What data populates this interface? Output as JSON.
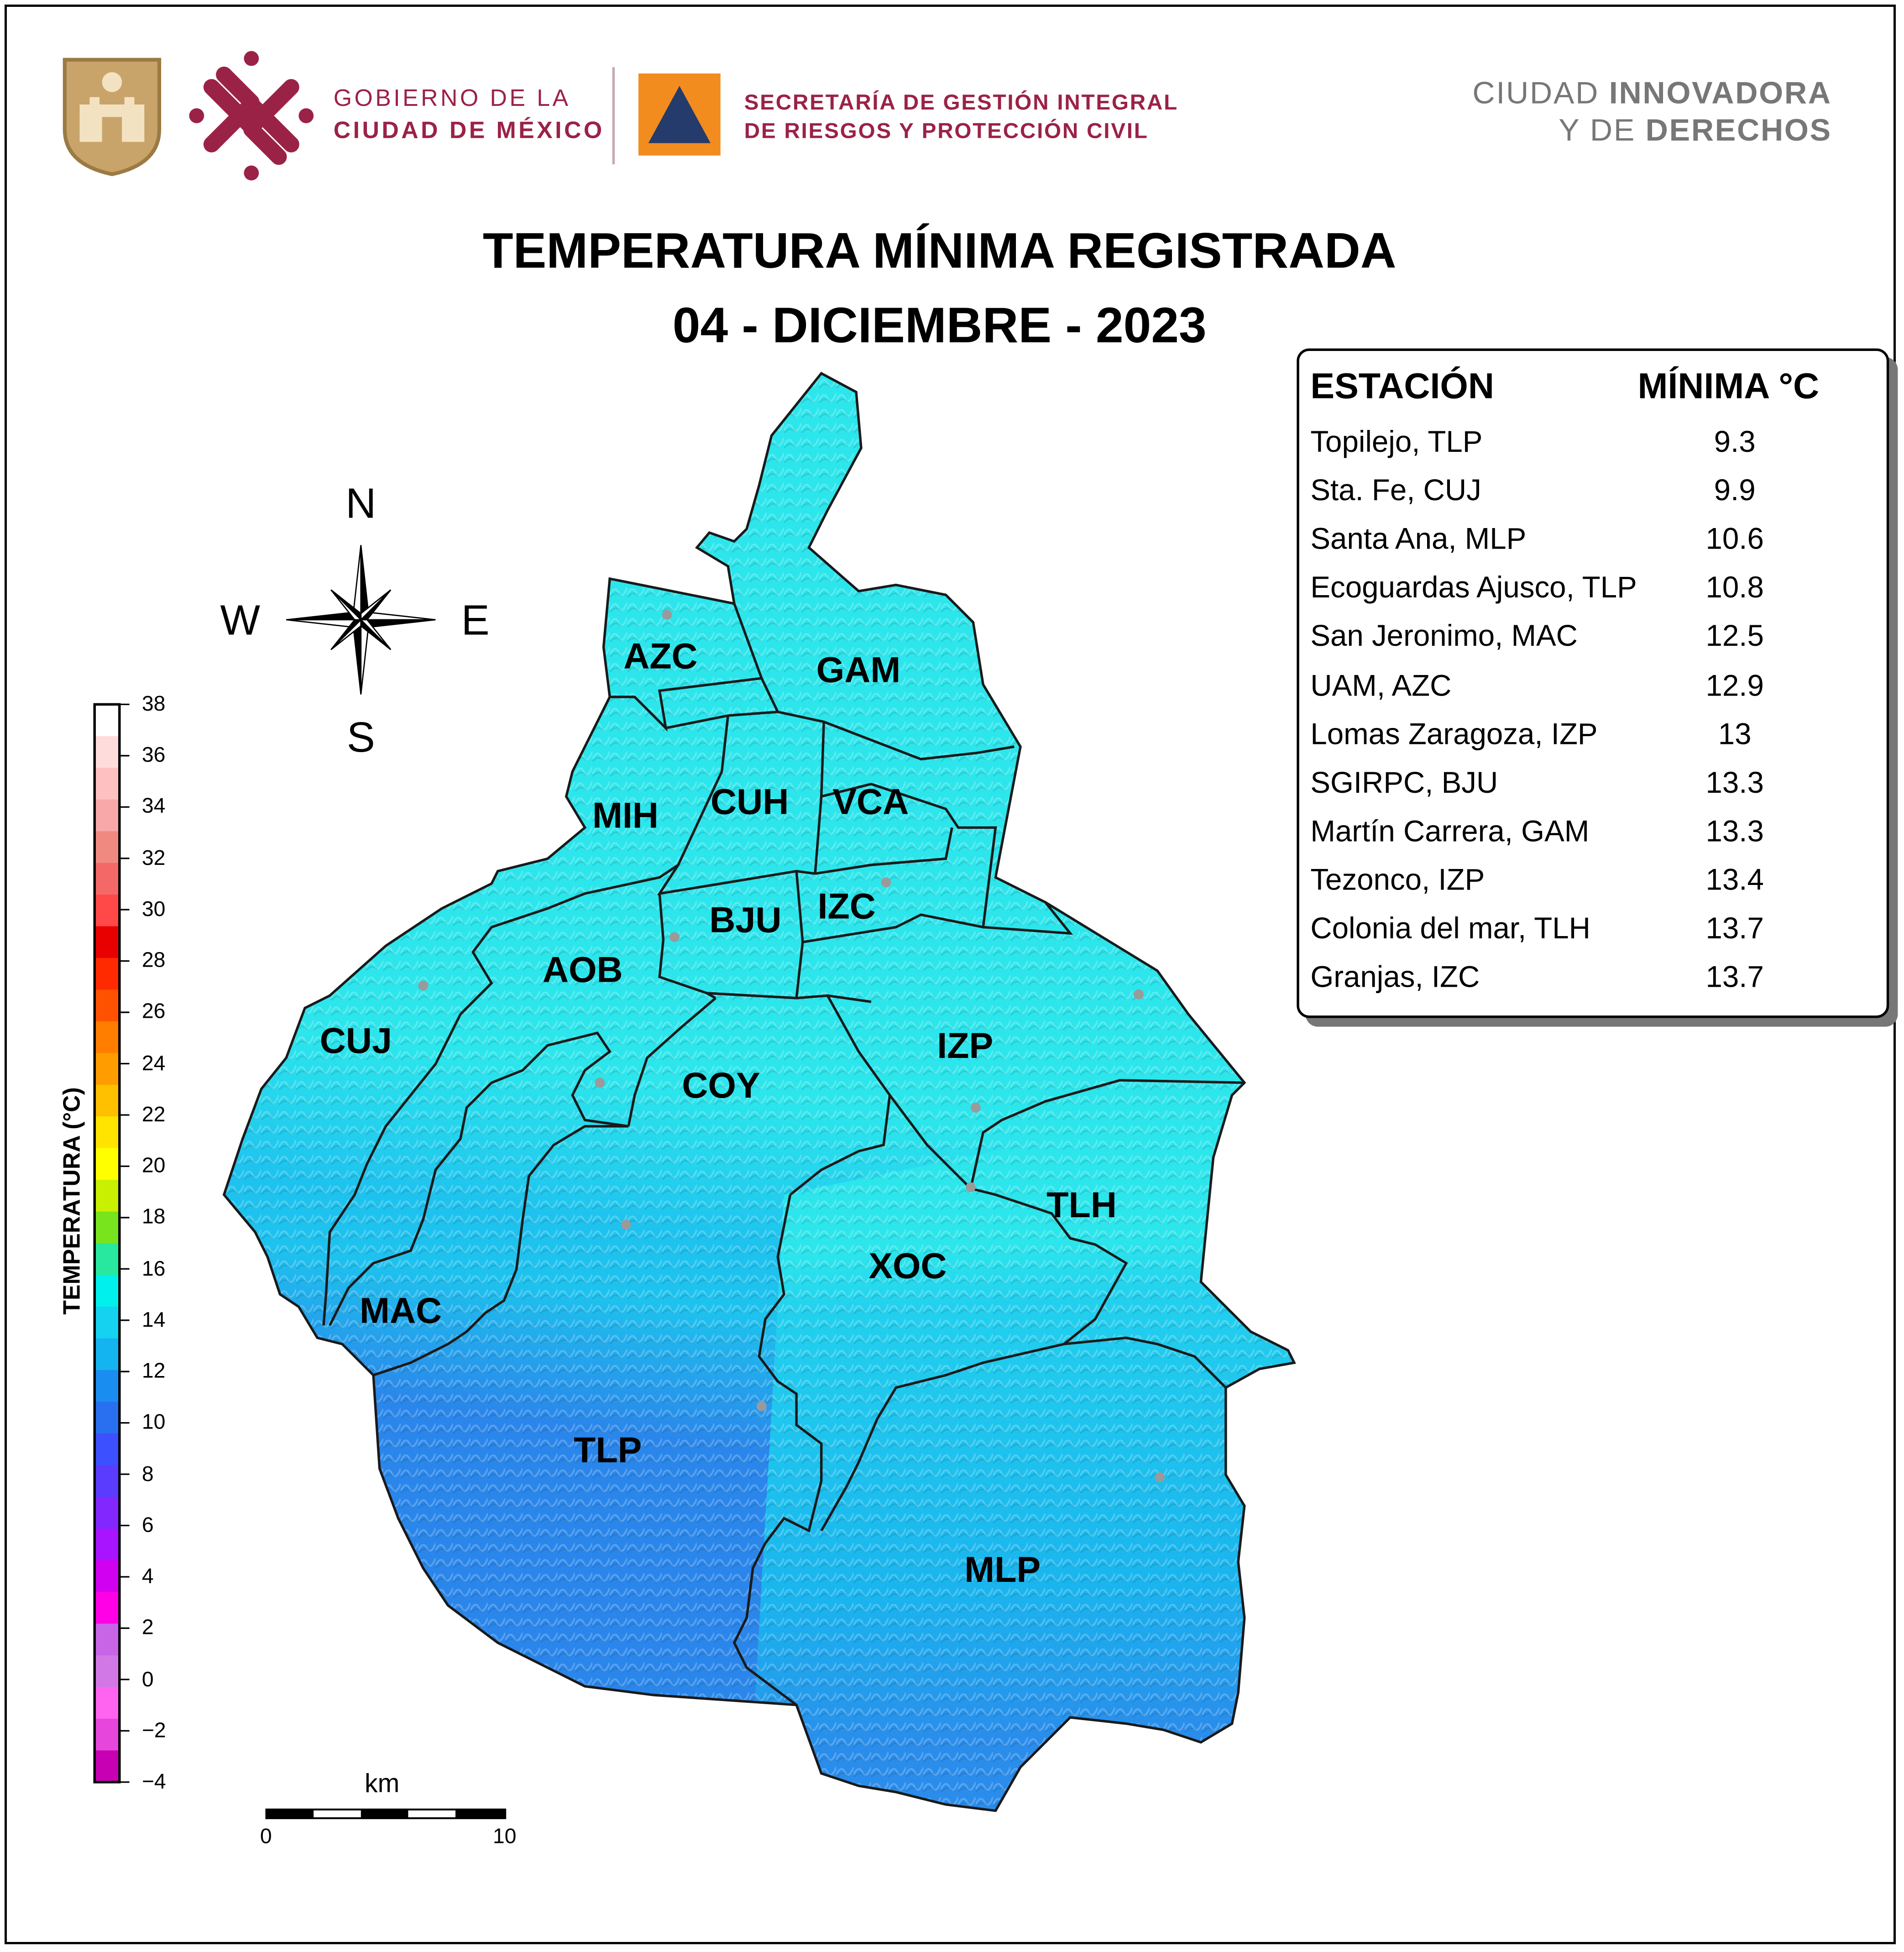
{
  "header": {
    "gov_line1": "GOBIERNO DE LA",
    "gov_line2": "CIUDAD DE MÉXICO",
    "agency_line1": "SECRETARÍA DE GESTIÓN INTEGRAL",
    "agency_line2": "DE RIESGOS Y PROTECCIÓN CIVIL",
    "slogan_line1_light": "CIUDAD ",
    "slogan_line1_bold": "INNOVADORA",
    "slogan_line2_light": "Y DE ",
    "slogan_line2_bold": "DERECHOS"
  },
  "title": {
    "line1": "TEMPERATURA MÍNIMA REGISTRADA",
    "line2": "04 - DICIEMBRE - 2023"
  },
  "compass": {
    "n": "N",
    "s": "S",
    "e": "E",
    "w": "W"
  },
  "table": {
    "col_station": "ESTACIÓN",
    "col_min": "MÍNIMA °C",
    "rows": [
      {
        "station": "Topilejo, TLP",
        "min": "9.3"
      },
      {
        "station": "Sta. Fe, CUJ",
        "min": "9.9"
      },
      {
        "station": "Santa Ana, MLP",
        "min": "10.6"
      },
      {
        "station": "Ecoguardas Ajusco, TLP",
        "min": "10.8"
      },
      {
        "station": "San Jeronimo, MAC",
        "min": "12.5"
      },
      {
        "station": "UAM, AZC",
        "min": "12.9"
      },
      {
        "station": "Lomas Zaragoza, IZP",
        "min": "13"
      },
      {
        "station": "SGIRPC, BJU",
        "min": "13.3"
      },
      {
        "station": "Martín Carrera, GAM",
        "min": "13.3"
      },
      {
        "station": "Tezonco, IZP",
        "min": "13.4"
      },
      {
        "station": "Colonia del mar, TLH",
        "min": "13.7"
      },
      {
        "station": "Granjas, IZC",
        "min": "13.7"
      }
    ]
  },
  "alcaldias": {
    "azc": "AZC",
    "gam": "GAM",
    "mih": "MIH",
    "cuh": "CUH",
    "vca": "VCA",
    "bju": "BJU",
    "izc": "IZC",
    "aob": "AOB",
    "cuj": "CUJ",
    "izp": "IZP",
    "coy": "COY",
    "tlh": "TLH",
    "xoc": "XOC",
    "mac": "MAC",
    "tlp": "TLP",
    "mlp": "MLP"
  },
  "colorbar": {
    "title": "TEMPERATURA (°C)",
    "ticks": [
      "38",
      "36",
      "34",
      "32",
      "30",
      "28",
      "26",
      "24",
      "22",
      "20",
      "18",
      "16",
      "14",
      "12",
      "10",
      "8",
      "6",
      "4",
      "2",
      "0",
      "−2",
      "−4"
    ],
    "colors_top_to_bottom": [
      "#ffffff",
      "#ffdcdc",
      "#ffc0c0",
      "#f8a8a8",
      "#f08a80",
      "#f56868",
      "#ff4848",
      "#e80000",
      "#ff2a00",
      "#ff5200",
      "#ff7e00",
      "#ff9c00",
      "#ffc000",
      "#ffe400",
      "#ffff00",
      "#c8f000",
      "#78e41e",
      "#28e8a0",
      "#00f0ec",
      "#14d2f0",
      "#14b4f0",
      "#1a8ef0",
      "#2870f0",
      "#3c50ff",
      "#5a3cff",
      "#8228ff",
      "#a814ff",
      "#d200f0",
      "#ff00e6",
      "#c864e6",
      "#d278e6",
      "#ff64f0",
      "#e646dc",
      "#c800b4"
    ]
  },
  "scalebar": {
    "unit": "km",
    "start": "0",
    "end": "10"
  },
  "temperature_fill": {
    "north_temp_c": 13.5,
    "central_temp_c": 12,
    "south_temp_c": 9.5,
    "north_color": "#2ce6ec",
    "central_color": "#1ec2ee",
    "south_color": "#2a86ea"
  }
}
